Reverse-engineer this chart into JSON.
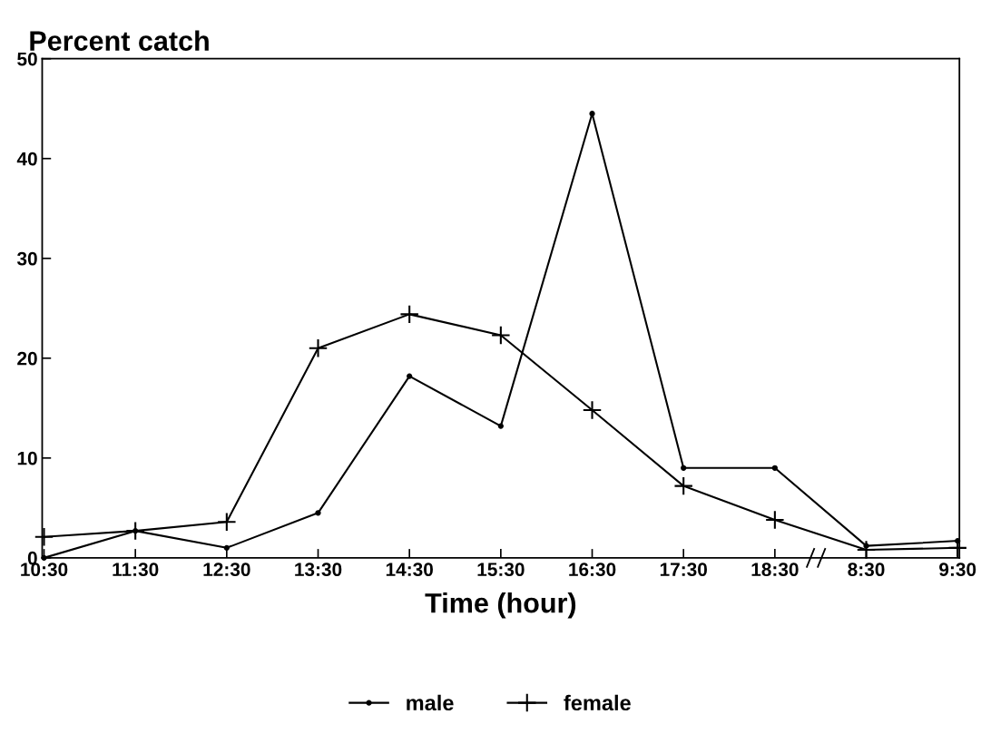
{
  "chart_data": {
    "type": "line",
    "ylabel": "Percent catch",
    "xlabel": "Time (hour)",
    "categories": [
      "10:30",
      "11:30",
      "12:30",
      "13:30",
      "14:30",
      "15:30",
      "16:30",
      "17:30",
      "18:30",
      "8:30",
      "9:30"
    ],
    "series": [
      {
        "name": "male",
        "color": "#000000",
        "marker": "circle",
        "values": [
          0,
          2.7,
          1,
          4.5,
          18.2,
          13.2,
          44.5,
          9,
          9,
          1.2,
          1.7
        ]
      },
      {
        "name": "female",
        "color": "#000000",
        "marker": "cross",
        "values": [
          2.1,
          2.7,
          3.6,
          21,
          24.4,
          22.3,
          14.8,
          7.2,
          3.8,
          0.8,
          1.0
        ]
      }
    ],
    "ylim": [
      0,
      50
    ],
    "yticks": [
      0,
      10,
      20,
      30,
      40,
      50
    ],
    "legend": "bottom",
    "grid": false,
    "line_style": "solid"
  }
}
